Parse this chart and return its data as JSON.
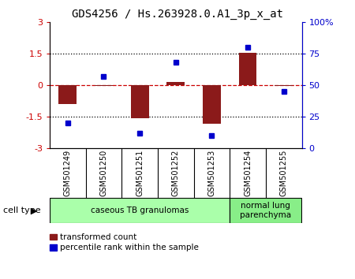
{
  "title": "GDS4256 / Hs.263928.0.A1_3p_x_at",
  "samples": [
    "GSM501249",
    "GSM501250",
    "GSM501251",
    "GSM501252",
    "GSM501253",
    "GSM501254",
    "GSM501255"
  ],
  "transformed_counts": [
    -0.9,
    -0.05,
    -1.6,
    0.15,
    -1.85,
    1.55,
    -0.05
  ],
  "percentile_ranks": [
    20,
    57,
    12,
    68,
    10,
    80,
    45
  ],
  "cell_types": [
    {
      "label": "caseous TB granulomas",
      "samples_idx": [
        0,
        4
      ],
      "color": "#aaffaa"
    },
    {
      "label": "normal lung\nparenchyma",
      "samples_idx": [
        5,
        6
      ],
      "color": "#88ee88"
    }
  ],
  "bar_color": "#8b1a1a",
  "dot_color": "#0000cc",
  "ylim_left": [
    -3,
    3
  ],
  "ylim_right": [
    0,
    100
  ],
  "yticks_left": [
    -3,
    -1.5,
    0,
    1.5,
    3
  ],
  "yticks_right": [
    0,
    25,
    50,
    75,
    100
  ],
  "ytick_labels_left": [
    "-3",
    "-1.5",
    "0",
    "1.5",
    "3"
  ],
  "ytick_labels_right": [
    "0",
    "25",
    "50",
    "75",
    "100%"
  ],
  "dotted_lines": [
    -1.5,
    1.5
  ],
  "cell_type_label": "cell type",
  "legend_red": "transformed count",
  "legend_blue": "percentile rank within the sample",
  "sample_box_color": "#d0d0d0",
  "right_axis_label_suffix": [
    false,
    false,
    false,
    false,
    true
  ]
}
